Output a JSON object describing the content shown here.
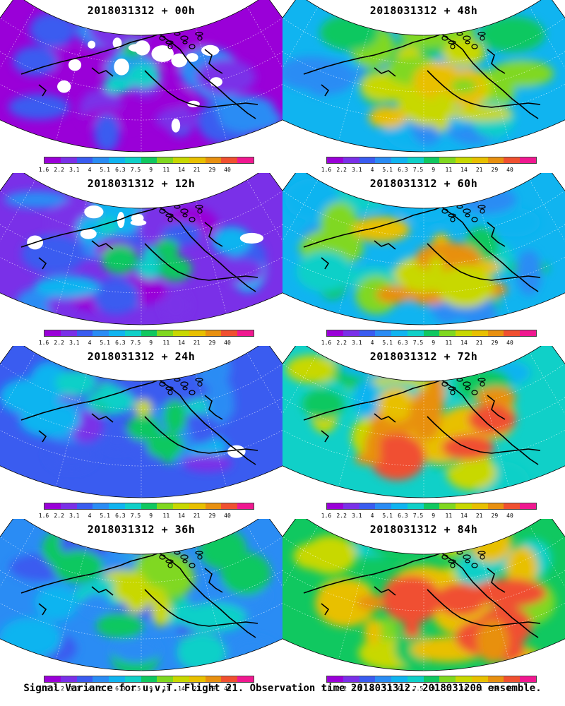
{
  "colorbar": {
    "labels": [
      "1.6",
      "2.2",
      "3.1",
      "4",
      "5.1",
      "6.3",
      "7.5",
      "9",
      "11",
      "14",
      "21",
      "29",
      "40"
    ],
    "colors": [
      "#9a00d8",
      "#7a30e8",
      "#3a5cf0",
      "#2a8cf4",
      "#10b4f0",
      "#10d0c8",
      "#10c860",
      "#80d820",
      "#c8d800",
      "#e8c000",
      "#e89010",
      "#f05030",
      "#f01890"
    ]
  },
  "panels": [
    {
      "id": "p00",
      "title": "2018031312 + 00h",
      "intensity": 0.0
    },
    {
      "id": "p48",
      "title": "2018031312 + 48h",
      "intensity": 0.62
    },
    {
      "id": "p12",
      "title": "2018031312 + 12h",
      "intensity": 0.18
    },
    {
      "id": "p60",
      "title": "2018031312 + 60h",
      "intensity": 0.74
    },
    {
      "id": "p24",
      "title": "2018031312 + 24h",
      "intensity": 0.32
    },
    {
      "id": "p72",
      "title": "2018031312 + 72h",
      "intensity": 0.85
    },
    {
      "id": "p36",
      "title": "2018031312 + 36h",
      "intensity": 0.45
    },
    {
      "id": "p84",
      "title": "2018031312 + 84h",
      "intensity": 0.95
    }
  ],
  "footer": "Signal Variance for u,v,T. Flight 21. Observation time 2018031312. 2018031200 ensemble."
}
